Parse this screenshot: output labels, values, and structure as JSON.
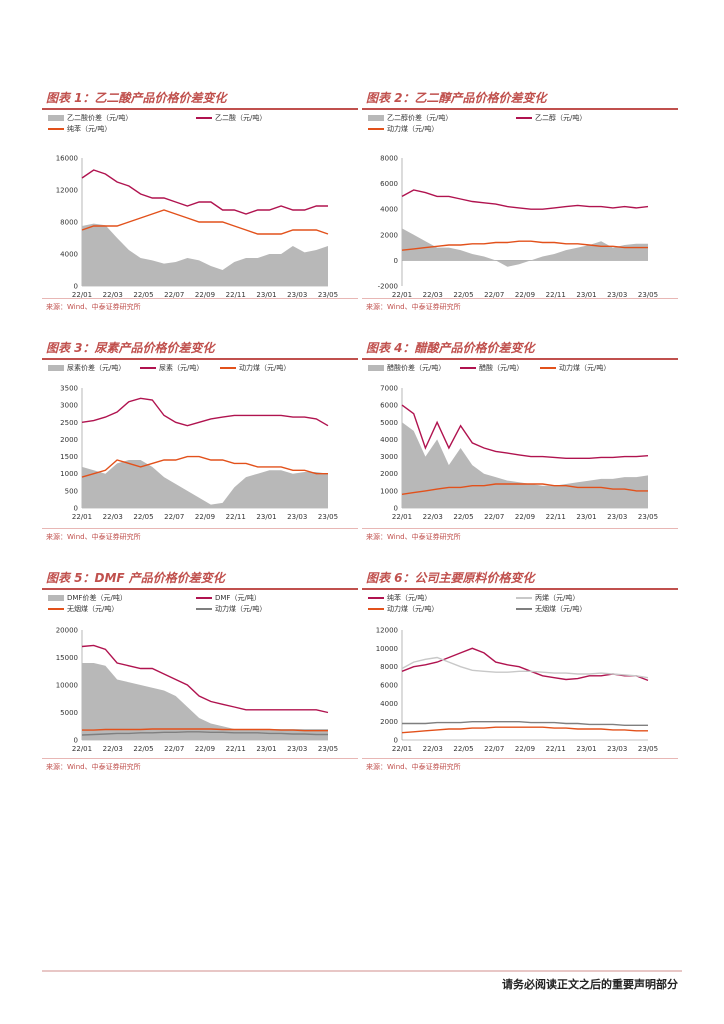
{
  "colors": {
    "accent": "#c0504d",
    "diff": "#b8b8b8",
    "red": "#b0134f",
    "orange": "#e2511b",
    "gray": "#7f7f7f",
    "lightgray": "#c8c8c8"
  },
  "source": "来源：Wind、中泰证券研究所",
  "footer": "请务必阅读正文之后的重要声明部分",
  "charts": [
    {
      "title": "图表 1：乙二酸产品价格价差变化",
      "type": "area+line",
      "legend": [
        "乙二酸价差（元/吨）",
        "乙二酸（元/吨）",
        "纯苯（元/吨）"
      ],
      "legend_types": [
        "bar",
        "line",
        "line"
      ],
      "yticks": [
        "0",
        "4000",
        "8000",
        "12000",
        "16000"
      ],
      "ylim": [
        0,
        16000
      ],
      "xticks": [
        "22/01",
        "22/03",
        "22/05",
        "22/07",
        "22/09",
        "22/11",
        "23/01",
        "23/03",
        "23/05"
      ],
      "series": [
        {
          "name": "乙二酸价差（元/吨）",
          "kind": "area",
          "color": "#b8b8b8",
          "values": [
            7500,
            7800,
            7600,
            6000,
            4500,
            3500,
            3200,
            2800,
            3000,
            3500,
            3200,
            2500,
            2000,
            3000,
            3500,
            3500,
            4000,
            4000,
            5000,
            4200,
            4500,
            5000
          ]
        },
        {
          "name": "乙二酸（元/吨）",
          "kind": "line",
          "color": "#b0134f",
          "values": [
            13500,
            14500,
            14000,
            13000,
            12500,
            11500,
            11000,
            11000,
            10500,
            10000,
            10500,
            10500,
            9500,
            9500,
            9000,
            9500,
            9500,
            10000,
            9500,
            9500,
            10000,
            10000
          ]
        },
        {
          "name": "纯苯（元/吨）",
          "kind": "line",
          "color": "#e2511b",
          "values": [
            7000,
            7500,
            7500,
            7500,
            8000,
            8500,
            9000,
            9500,
            9000,
            8500,
            8000,
            8000,
            8000,
            7500,
            7000,
            6500,
            6500,
            6500,
            7000,
            7000,
            7000,
            6500
          ]
        }
      ]
    },
    {
      "title": "图表 2：乙二醇产品价格价差变化",
      "type": "area+line",
      "legend": [
        "乙二醇价差（元/吨）",
        "乙二醇（元/吨）",
        "动力煤（元/吨）"
      ],
      "legend_types": [
        "bar",
        "line",
        "line"
      ],
      "yticks": [
        "-2000",
        "0",
        "2000",
        "4000",
        "6000",
        "8000"
      ],
      "ylim": [
        -2000,
        8000
      ],
      "xticks": [
        "22/01",
        "22/03",
        "22/05",
        "22/07",
        "22/09",
        "22/11",
        "23/01",
        "23/03",
        "23/05"
      ],
      "series": [
        {
          "name": "乙二醇价差（元/吨）",
          "kind": "area",
          "color": "#b8b8b8",
          "values": [
            2500,
            2000,
            1500,
            1000,
            1000,
            800,
            500,
            300,
            0,
            -500,
            -300,
            0,
            300,
            500,
            800,
            1000,
            1200,
            1500,
            1000,
            1200,
            1300,
            1300
          ]
        },
        {
          "name": "乙二醇（元/吨）",
          "kind": "line",
          "color": "#b0134f",
          "values": [
            5000,
            5500,
            5300,
            5000,
            5000,
            4800,
            4600,
            4500,
            4400,
            4200,
            4100,
            4000,
            4000,
            4100,
            4200,
            4300,
            4200,
            4200,
            4100,
            4200,
            4100,
            4200
          ]
        },
        {
          "name": "动力煤（元/吨）",
          "kind": "line",
          "color": "#e2511b",
          "values": [
            800,
            900,
            1000,
            1100,
            1200,
            1200,
            1300,
            1300,
            1400,
            1400,
            1500,
            1500,
            1400,
            1400,
            1300,
            1300,
            1200,
            1100,
            1100,
            1000,
            1000,
            1000
          ]
        }
      ]
    },
    {
      "title": "图表 3：尿素产品价格价差变化",
      "type": "area+line",
      "legend": [
        "尿素价差（元/吨）",
        "尿素（元/吨）",
        "动力煤（元/吨）"
      ],
      "legend_types": [
        "bar",
        "line",
        "line"
      ],
      "yticks": [
        "0",
        "500",
        "1000",
        "1500",
        "2000",
        "2500",
        "3000",
        "3500"
      ],
      "ylim": [
        0,
        3500
      ],
      "xticks": [
        "22/01",
        "22/03",
        "22/05",
        "22/07",
        "22/09",
        "22/11",
        "23/01",
        "23/03",
        "23/05"
      ],
      "series": [
        {
          "name": "尿素价差（元/吨）",
          "kind": "area",
          "color": "#b8b8b8",
          "values": [
            1200,
            1100,
            1000,
            1300,
            1400,
            1400,
            1200,
            900,
            700,
            500,
            300,
            100,
            150,
            600,
            900,
            1000,
            1100,
            1100,
            1000,
            1050,
            1050,
            1000
          ]
        },
        {
          "name": "尿素（元/吨）",
          "kind": "line",
          "color": "#b0134f",
          "values": [
            2500,
            2550,
            2650,
            2800,
            3100,
            3200,
            3150,
            2700,
            2500,
            2400,
            2500,
            2600,
            2650,
            2700,
            2700,
            2700,
            2700,
            2700,
            2650,
            2650,
            2600,
            2400
          ]
        },
        {
          "name": "动力煤（元/吨）",
          "kind": "line",
          "color": "#e2511b",
          "values": [
            900,
            1000,
            1100,
            1400,
            1300,
            1200,
            1300,
            1400,
            1400,
            1500,
            1500,
            1400,
            1400,
            1300,
            1300,
            1200,
            1200,
            1200,
            1100,
            1100,
            1000,
            1000
          ]
        }
      ]
    },
    {
      "title": "图表 4：醋酸产品价格价差变化",
      "type": "area+line",
      "legend": [
        "醋酸价差（元/吨）",
        "醋酸（元/吨）",
        "动力煤（元/吨）"
      ],
      "legend_types": [
        "bar",
        "line",
        "line"
      ],
      "yticks": [
        "0",
        "1000",
        "2000",
        "3000",
        "4000",
        "5000",
        "6000",
        "7000"
      ],
      "ylim": [
        0,
        7000
      ],
      "xticks": [
        "22/01",
        "22/03",
        "22/05",
        "22/07",
        "22/09",
        "22/11",
        "23/01",
        "23/03",
        "23/05"
      ],
      "series": [
        {
          "name": "醋酸价差（元/吨）",
          "kind": "area",
          "color": "#b8b8b8",
          "values": [
            5000,
            4500,
            3000,
            4000,
            2500,
            3500,
            2500,
            2000,
            1800,
            1600,
            1500,
            1400,
            1300,
            1300,
            1400,
            1500,
            1600,
            1700,
            1700,
            1800,
            1800,
            1900
          ]
        },
        {
          "name": "醋酸（元/吨）",
          "kind": "line",
          "color": "#b0134f",
          "values": [
            6000,
            5500,
            3500,
            5000,
            3500,
            4800,
            3800,
            3500,
            3300,
            3200,
            3100,
            3000,
            3000,
            2950,
            2900,
            2900,
            2900,
            2950,
            2950,
            3000,
            3000,
            3050
          ]
        },
        {
          "name": "动力煤（元/吨）",
          "kind": "line",
          "color": "#e2511b",
          "values": [
            800,
            900,
            1000,
            1100,
            1200,
            1200,
            1300,
            1300,
            1400,
            1400,
            1400,
            1400,
            1400,
            1300,
            1300,
            1200,
            1200,
            1200,
            1100,
            1100,
            1000,
            1000
          ]
        }
      ]
    },
    {
      "title": "图表 5：DMF 产品价格价差变化",
      "type": "area+line",
      "legend": [
        "DMF价差（元/吨）",
        "DMF（元/吨）",
        "无烟煤（元/吨）",
        "动力煤（元/吨）"
      ],
      "legend_types": [
        "bar",
        "line",
        "line",
        "line"
      ],
      "yticks": [
        "0",
        "5000",
        "10000",
        "15000",
        "20000"
      ],
      "ylim": [
        0,
        20000
      ],
      "xticks": [
        "22/01",
        "22/03",
        "22/05",
        "22/07",
        "22/09",
        "22/11",
        "23/01",
        "23/03",
        "23/05"
      ],
      "series": [
        {
          "name": "DMF价差（元/吨）",
          "kind": "area",
          "color": "#b8b8b8",
          "values": [
            14000,
            14000,
            13500,
            11000,
            10500,
            10000,
            9500,
            9000,
            8000,
            6000,
            4000,
            3000,
            2500,
            2000,
            2000,
            2000,
            2000,
            2000,
            2000,
            2000,
            2000,
            2000
          ]
        },
        {
          "name": "DMF（元/吨）",
          "kind": "line",
          "color": "#b0134f",
          "values": [
            17000,
            17200,
            16500,
            14000,
            13500,
            13000,
            13000,
            12000,
            11000,
            10000,
            8000,
            7000,
            6500,
            6000,
            5500,
            5500,
            5500,
            5500,
            5500,
            5500,
            5500,
            5000
          ]
        },
        {
          "name": "无烟煤（元/吨）",
          "kind": "line",
          "color": "#e2511b",
          "values": [
            1800,
            1800,
            1900,
            1900,
            1900,
            1900,
            2000,
            2000,
            2000,
            2000,
            2000,
            2000,
            1900,
            1900,
            1900,
            1900,
            1900,
            1800,
            1800,
            1700,
            1700,
            1700
          ]
        },
        {
          "name": "动力煤（元/吨）",
          "kind": "line",
          "color": "#7f7f7f",
          "values": [
            900,
            1000,
            1100,
            1200,
            1200,
            1300,
            1300,
            1400,
            1400,
            1500,
            1500,
            1400,
            1400,
            1300,
            1300,
            1300,
            1200,
            1200,
            1100,
            1100,
            1000,
            1000
          ]
        }
      ]
    },
    {
      "title": "图表 6：公司主要原料价格变化",
      "type": "line",
      "legend": [
        "纯苯（元/吨）",
        "丙烯（元/吨）",
        "动力煤（元/吨）",
        "无烟煤（元/吨）"
      ],
      "legend_types": [
        "line",
        "line",
        "line",
        "line"
      ],
      "yticks": [
        "0",
        "2000",
        "4000",
        "6000",
        "8000",
        "10000",
        "12000"
      ],
      "ylim": [
        0,
        12000
      ],
      "xticks": [
        "22/01",
        "22/03",
        "22/05",
        "22/07",
        "22/09",
        "22/11",
        "23/01",
        "23/03",
        "23/05"
      ],
      "series": [
        {
          "name": "纯苯（元/吨）",
          "kind": "line",
          "color": "#b0134f",
          "values": [
            7500,
            8000,
            8200,
            8500,
            9000,
            9500,
            10000,
            9500,
            8500,
            8200,
            8000,
            7500,
            7000,
            6800,
            6600,
            6700,
            7000,
            7000,
            7200,
            7000,
            7000,
            6500
          ]
        },
        {
          "name": "丙烯（元/吨）",
          "kind": "line",
          "color": "#c8c8c8",
          "values": [
            7800,
            8500,
            8800,
            9000,
            8500,
            8000,
            7600,
            7500,
            7400,
            7400,
            7500,
            7500,
            7400,
            7300,
            7300,
            7200,
            7200,
            7300,
            7200,
            7100,
            7000,
            6800
          ]
        },
        {
          "name": "动力煤（元/吨）",
          "kind": "line",
          "color": "#e2511b",
          "values": [
            800,
            900,
            1000,
            1100,
            1200,
            1200,
            1300,
            1300,
            1400,
            1400,
            1400,
            1400,
            1400,
            1300,
            1300,
            1200,
            1200,
            1200,
            1100,
            1100,
            1000,
            1000
          ]
        },
        {
          "name": "无烟煤（元/吨）",
          "kind": "line",
          "color": "#7f7f7f",
          "values": [
            1800,
            1800,
            1800,
            1900,
            1900,
            1900,
            2000,
            2000,
            2000,
            2000,
            2000,
            1900,
            1900,
            1900,
            1800,
            1800,
            1700,
            1700,
            1700,
            1600,
            1600,
            1600
          ]
        }
      ]
    }
  ]
}
